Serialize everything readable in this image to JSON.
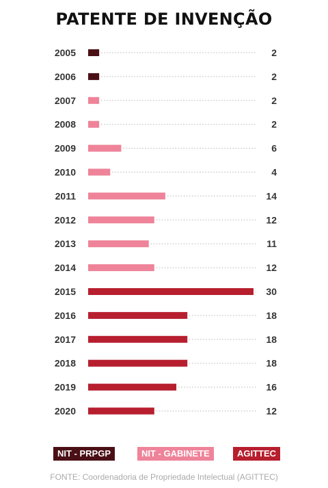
{
  "chart_data": {
    "type": "bar",
    "orientation": "horizontal",
    "title": "PATENTE DE INVENÇÃO",
    "categories": [
      "2005",
      "2006",
      "2007",
      "2008",
      "2009",
      "2010",
      "2011",
      "2012",
      "2013",
      "2014",
      "2015",
      "2016",
      "2017",
      "2018",
      "2019",
      "2020"
    ],
    "values": [
      2,
      2,
      2,
      2,
      6,
      4,
      14,
      12,
      11,
      12,
      30,
      18,
      18,
      18,
      16,
      12
    ],
    "value_labels": [
      "2",
      "2",
      "2",
      "2",
      "6",
      "4",
      "14",
      "12",
      "11",
      "12",
      "30",
      "18",
      "18",
      "18",
      "16",
      "12"
    ],
    "bar_groups": [
      "NIT - PRPGP",
      "NIT - PRPGP",
      "NIT - GABINETE",
      "NIT - GABINETE",
      "NIT - GABINETE",
      "NIT - GABINETE",
      "NIT - GABINETE",
      "NIT - GABINETE",
      "NIT - GABINETE",
      "NIT - GABINETE",
      "AGITTEC",
      "AGITTEC",
      "AGITTEC",
      "AGITTEC",
      "AGITTEC",
      "AGITTEC"
    ],
    "xlim": [
      0,
      30
    ],
    "grid": false,
    "legend_position": "bottom",
    "legend": [
      {
        "name": "NIT - PRPGP",
        "color": "#4a1016"
      },
      {
        "name": "NIT - GABINETE",
        "color": "#ee8399"
      },
      {
        "name": "AGITTEC",
        "color": "#b71f2e"
      }
    ]
  },
  "source": "FONTE: Coordenadoria de Propriedade Intelectual (AGITTEC)"
}
